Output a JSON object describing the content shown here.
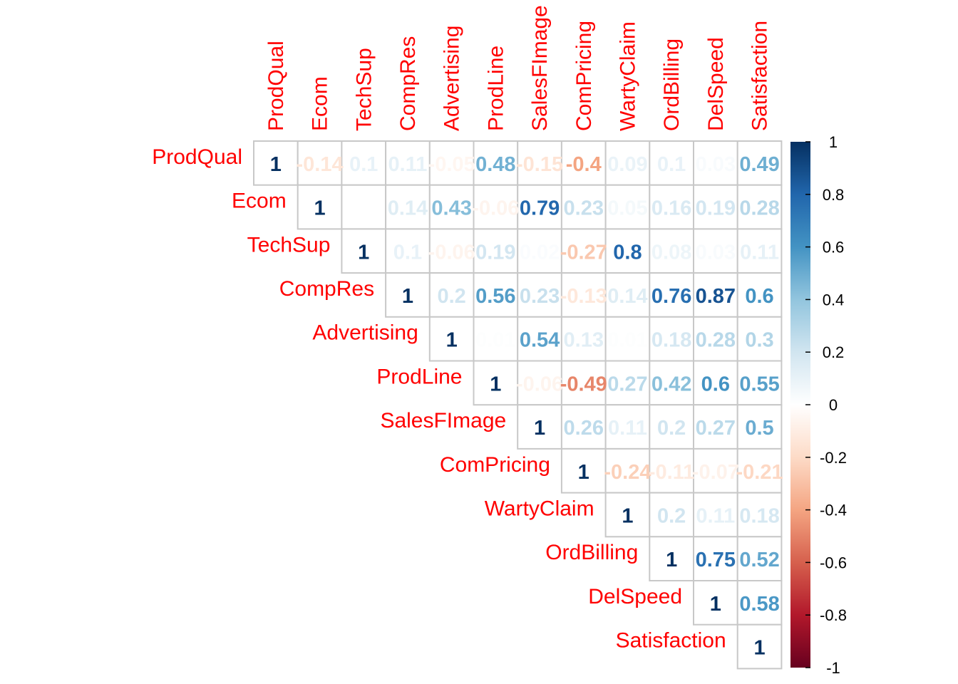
{
  "chart_data": {
    "type": "heatmap",
    "title": "",
    "variables": [
      "ProdQual",
      "Ecom",
      "TechSup",
      "CompRes",
      "Advertising",
      "ProdLine",
      "SalesFImage",
      "ComPricing",
      "WartyClaim",
      "OrdBilling",
      "DelSpeed",
      "Satisfaction"
    ],
    "triangle": "upper",
    "matrix": [
      [
        1,
        -0.14,
        0.1,
        0.11,
        -0.05,
        0.48,
        -0.15,
        -0.4,
        0.09,
        0.1,
        0.03,
        0.49
      ],
      [
        null,
        1,
        0,
        0.14,
        0.43,
        -0.06,
        0.79,
        0.23,
        0.05,
        0.16,
        0.19,
        0.28
      ],
      [
        null,
        null,
        1,
        0.1,
        -0.06,
        0.19,
        0.02,
        -0.27,
        0.8,
        0.08,
        0.03,
        0.11
      ],
      [
        null,
        null,
        null,
        1,
        0.2,
        0.56,
        0.23,
        -0.13,
        0.14,
        0.76,
        0.87,
        0.6
      ],
      [
        null,
        null,
        null,
        null,
        1,
        0.01,
        0.54,
        0.13,
        0.01,
        0.18,
        0.28,
        0.3
      ],
      [
        null,
        null,
        null,
        null,
        null,
        1,
        -0.06,
        -0.49,
        0.27,
        0.42,
        0.6,
        0.55
      ],
      [
        null,
        null,
        null,
        null,
        null,
        null,
        1,
        0.26,
        0.11,
        0.2,
        0.27,
        0.5
      ],
      [
        null,
        null,
        null,
        null,
        null,
        null,
        null,
        1,
        -0.24,
        -0.11,
        -0.07,
        -0.21
      ],
      [
        null,
        null,
        null,
        null,
        null,
        null,
        null,
        null,
        1,
        0.2,
        0.11,
        0.18
      ],
      [
        null,
        null,
        null,
        null,
        null,
        null,
        null,
        null,
        null,
        1,
        0.75,
        0.52
      ],
      [
        null,
        null,
        null,
        null,
        null,
        null,
        null,
        null,
        null,
        null,
        1,
        0.58
      ],
      [
        null,
        null,
        null,
        null,
        null,
        null,
        null,
        null,
        null,
        null,
        null,
        1
      ]
    ],
    "colorbar": {
      "range": [
        -1,
        1
      ],
      "ticks": [
        "1",
        "0.8",
        "0.6",
        "0.4",
        "0.2",
        "0",
        "-0.2",
        "-0.4",
        "-0.6",
        "-0.8",
        "-1"
      ],
      "colors": [
        "#67001F",
        "#B2182B",
        "#D6604D",
        "#F4A582",
        "#FDDBC7",
        "#FFFFFF",
        "#D1E5F0",
        "#92C5DE",
        "#4393C3",
        "#2166AC",
        "#053061"
      ]
    },
    "label_color": "#ff0000",
    "grid": true,
    "legend_position": "right"
  }
}
